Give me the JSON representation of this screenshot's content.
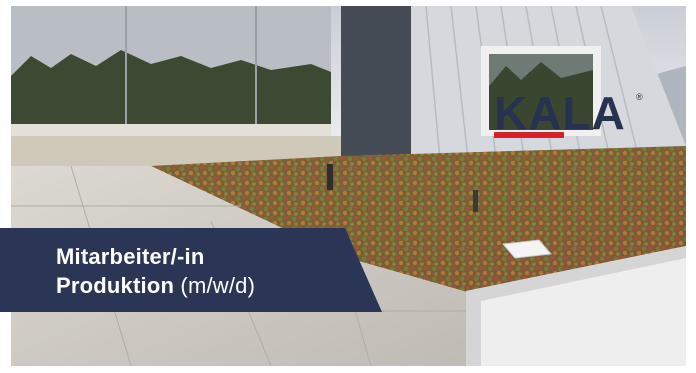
{
  "banner": {
    "line1": "Mitarbeiter/-in",
    "line2_bold": "Produktion",
    "line2_suffix": " (m/w/d)"
  },
  "logo": {
    "text": "KALA",
    "registered": "®",
    "color": "#26324f",
    "accent": "#d2232a"
  },
  "colors": {
    "banner_bg": "#2b3556",
    "sky": "#dfe3e8",
    "forest": "#3d4a33",
    "facade": "#d7d9dc",
    "roof_green": "#6d7c3a",
    "sedum_red": "#a45a3c",
    "paving": "#d0ccc6"
  }
}
